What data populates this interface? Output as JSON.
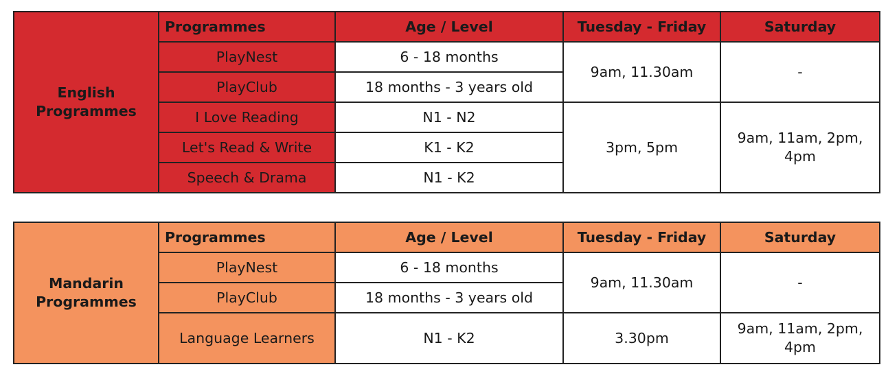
{
  "colors": {
    "english": "#d42a2f",
    "mandarin": "#f4935e",
    "border": "#222222"
  },
  "headers": {
    "programmes": "Programmes",
    "age_level": "Age / Level",
    "weekday": "Tuesday - Friday",
    "saturday": "Saturday"
  },
  "english": {
    "group_line1": "English",
    "group_line2": "Programmes",
    "rows": [
      {
        "programme": "PlayNest",
        "age": "6 - 18 months"
      },
      {
        "programme": "PlayClub",
        "age": "18 months - 3 years old"
      },
      {
        "programme": "I Love Reading",
        "age": "N1 - N2"
      },
      {
        "programme": "Let's Read & Write",
        "age": "K1 - K2"
      },
      {
        "programme": "Speech & Drama",
        "age": "N1 - K2"
      }
    ],
    "weekday_a": "9am, 11.30am",
    "saturday_a": "-",
    "weekday_b": "3pm, 5pm",
    "saturday_b_line1": "9am, 11am, 2pm,",
    "saturday_b_line2": "4pm"
  },
  "mandarin": {
    "group_line1": "Mandarin",
    "group_line2": "Programmes",
    "rows": [
      {
        "programme": "PlayNest",
        "age": "6 - 18 months"
      },
      {
        "programme": "PlayClub",
        "age": "18 months - 3 years old"
      },
      {
        "programme": "Language Learners",
        "age": "N1 - K2"
      }
    ],
    "weekday_a": "9am, 11.30am",
    "saturday_a": "-",
    "weekday_b": "3.30pm",
    "saturday_b_line1": "9am, 11am, 2pm,",
    "saturday_b_line2": "4pm"
  }
}
